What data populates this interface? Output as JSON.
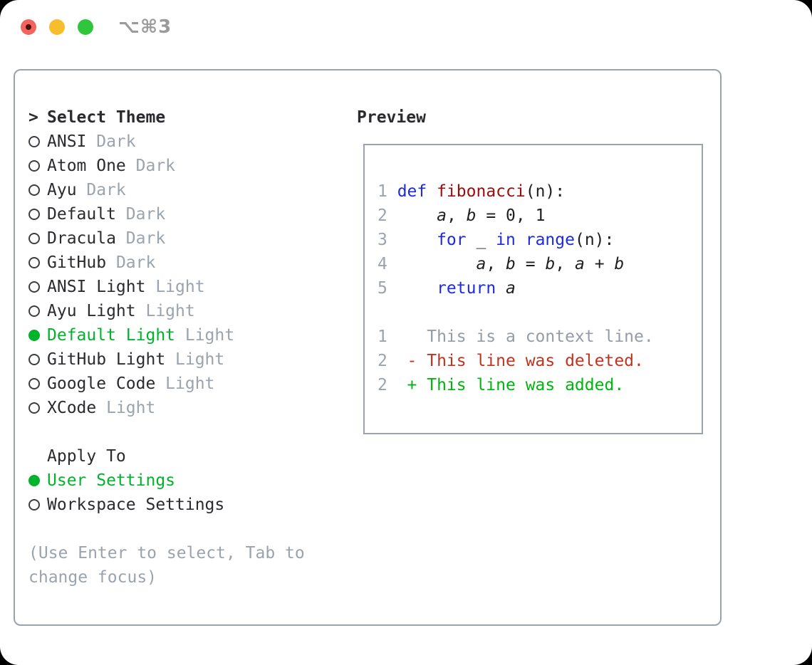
{
  "window": {
    "title": "⌥⌘3",
    "buttons": {
      "close": "close",
      "minimize": "minimize",
      "zoom": "zoom"
    }
  },
  "theme_selector": {
    "cursor": ">",
    "heading": "Select Theme",
    "items": [
      {
        "name": "ANSI",
        "variant": "Dark",
        "selected": false
      },
      {
        "name": "Atom One",
        "variant": "Dark",
        "selected": false
      },
      {
        "name": "Ayu",
        "variant": "Dark",
        "selected": false
      },
      {
        "name": "Default",
        "variant": "Dark",
        "selected": false
      },
      {
        "name": "Dracula",
        "variant": "Dark",
        "selected": false
      },
      {
        "name": "GitHub",
        "variant": "Dark",
        "selected": false
      },
      {
        "name": "ANSI Light",
        "variant": "Light",
        "selected": false
      },
      {
        "name": "Ayu Light",
        "variant": "Light",
        "selected": false
      },
      {
        "name": "Default Light",
        "variant": "Light",
        "selected": true
      },
      {
        "name": "GitHub Light",
        "variant": "Light",
        "selected": false
      },
      {
        "name": "Google Code",
        "variant": "Light",
        "selected": false
      },
      {
        "name": "XCode",
        "variant": "Light",
        "selected": false
      }
    ]
  },
  "apply_to": {
    "heading": "Apply To",
    "options": [
      {
        "label": "User Settings",
        "selected": true
      },
      {
        "label": "Workspace Settings",
        "selected": false
      }
    ]
  },
  "help_text": {
    "line1": "(Use Enter to select, Tab to",
    "line2": "change focus)"
  },
  "preview": {
    "heading": "Preview",
    "lines": [
      {
        "kind": "code",
        "num": "1",
        "segments": [
          {
            "text": "def",
            "color": "keyword"
          },
          {
            "text": " "
          },
          {
            "text": "fibonacci",
            "color": "function"
          },
          {
            "text": "(n):"
          }
        ]
      },
      {
        "kind": "code",
        "num": "2",
        "segments": [
          {
            "text": "    "
          },
          {
            "text": "a",
            "italic": true
          },
          {
            "text": ", "
          },
          {
            "text": "b",
            "italic": true
          },
          {
            "text": " = 0, 1"
          }
        ]
      },
      {
        "kind": "code",
        "num": "3",
        "segments": [
          {
            "text": "    "
          },
          {
            "text": "for",
            "color": "keyword"
          },
          {
            "text": " _ "
          },
          {
            "text": "in",
            "color": "keyword"
          },
          {
            "text": " "
          },
          {
            "text": "range",
            "color": "keyword"
          },
          {
            "text": "(n):"
          }
        ]
      },
      {
        "kind": "code",
        "num": "4",
        "segments": [
          {
            "text": "        "
          },
          {
            "text": "a",
            "italic": true
          },
          {
            "text": ", "
          },
          {
            "text": "b",
            "italic": true
          },
          {
            "text": " = "
          },
          {
            "text": "b",
            "italic": true
          },
          {
            "text": ", "
          },
          {
            "text": "a",
            "italic": true
          },
          {
            "text": " + "
          },
          {
            "text": "b",
            "italic": true
          }
        ]
      },
      {
        "kind": "code",
        "num": "5",
        "segments": [
          {
            "text": "    "
          },
          {
            "text": "return",
            "color": "keyword"
          },
          {
            "text": " "
          },
          {
            "text": "a",
            "italic": true
          }
        ]
      },
      {
        "kind": "blank",
        "num": "",
        "segments": []
      },
      {
        "kind": "context",
        "num": "1",
        "segments": [
          {
            "text": "   This is a context line.",
            "color": "context"
          }
        ]
      },
      {
        "kind": "deleted",
        "num": "2",
        "segments": [
          {
            "text": " - This line was deleted.",
            "color": "deleted"
          }
        ]
      },
      {
        "kind": "added",
        "num": "2",
        "segments": [
          {
            "text": " + This line was added.",
            "color": "added"
          }
        ]
      }
    ]
  },
  "colors": {
    "ink": "#2b2b2f",
    "code_ink": "#1f1f1f",
    "muted": "#9aa3ae",
    "context_gray": "#949da6",
    "ring_gray": "#3b3e44",
    "border_gray": "#9aa2ae",
    "titlebar_gray": "#9b9b9b",
    "selected_green": "#00b32a",
    "added_green": "#00b50f",
    "deleted_red": "#c2331f",
    "keyword_blue": "#1c2be2",
    "function_red": "#9b0d0d",
    "light_red": "#f2655e",
    "light_red_dot": "#4a100c",
    "light_yellow": "#f8bd2d",
    "light_green": "#2fc63e"
  }
}
